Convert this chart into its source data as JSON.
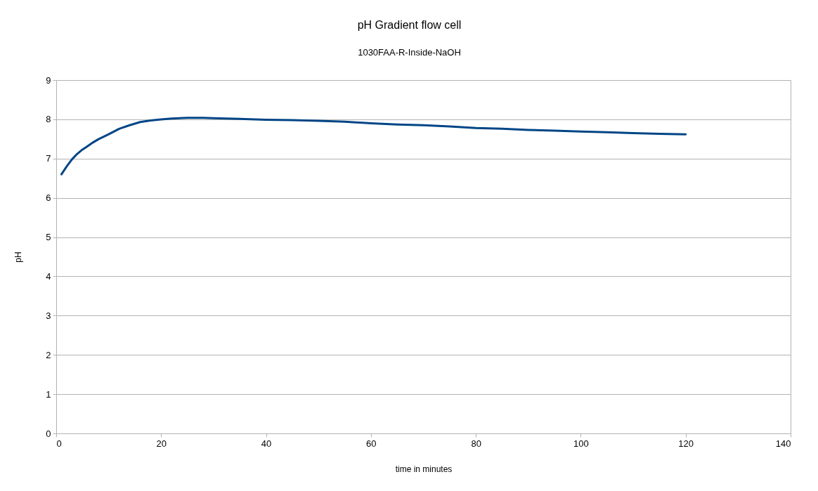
{
  "chart_data": {
    "type": "line",
    "title": "pH Gradient flow cell",
    "subtitle": "1030FAA-R-Inside-NaOH",
    "xlabel": "time in minutes",
    "ylabel": "pH",
    "x": [
      1,
      2,
      3,
      4,
      5,
      6,
      7,
      8,
      10,
      12,
      14,
      16,
      18,
      20,
      22,
      25,
      28,
      30,
      35,
      40,
      45,
      50,
      55,
      60,
      65,
      70,
      75,
      80,
      85,
      90,
      95,
      100,
      105,
      110,
      115,
      120
    ],
    "series": [
      {
        "color": "#004586",
        "values": [
          6.6,
          6.8,
          6.98,
          7.12,
          7.23,
          7.32,
          7.41,
          7.49,
          7.62,
          7.76,
          7.85,
          7.93,
          7.97,
          8.0,
          8.02,
          8.04,
          8.04,
          8.03,
          8.01,
          7.99,
          7.98,
          7.96,
          7.94,
          7.9,
          7.87,
          7.85,
          7.82,
          7.78,
          7.76,
          7.73,
          7.71,
          7.69,
          7.67,
          7.65,
          7.63,
          7.62
        ]
      }
    ],
    "xlim": [
      0,
      140
    ],
    "xticks": [
      0,
      20,
      40,
      60,
      80,
      100,
      120,
      140
    ],
    "ylim": [
      0,
      9
    ],
    "yticks": [
      0,
      1,
      2,
      3,
      4,
      5,
      6,
      7,
      8,
      9
    ],
    "grid": "y"
  }
}
